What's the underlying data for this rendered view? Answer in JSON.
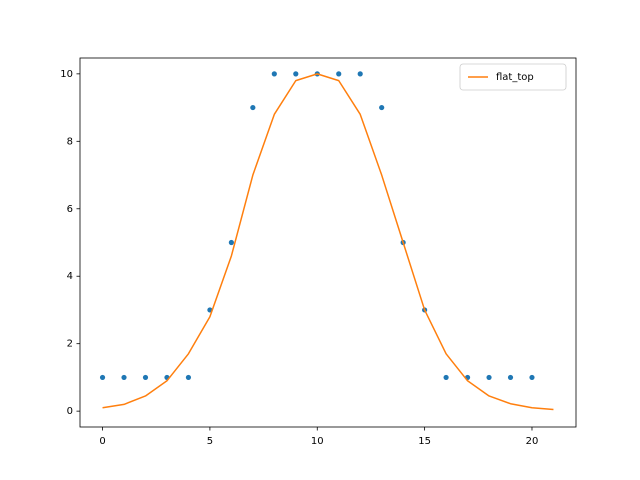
{
  "chart_data": {
    "type": "combo",
    "series": [
      {
        "type": "scatter",
        "color": "#1f77b4",
        "x": [
          0,
          1,
          2,
          3,
          4,
          5,
          6,
          7,
          8,
          9,
          10,
          11,
          12,
          13,
          14,
          15,
          16,
          17,
          18,
          19,
          20
        ],
        "values": [
          1,
          1,
          1,
          1,
          1,
          3,
          5,
          9,
          10,
          10,
          10,
          10,
          10,
          9,
          5,
          3,
          1,
          1,
          1,
          1,
          1
        ]
      },
      {
        "type": "line",
        "name": "flat_top",
        "color": "#ff7f0e",
        "x": [
          0,
          1,
          2,
          3,
          4,
          5,
          6,
          7,
          8,
          9,
          10,
          11,
          12,
          13,
          14,
          15,
          16,
          17,
          18,
          19,
          20,
          21
        ],
        "values": [
          0.1,
          0.2,
          0.45,
          0.9,
          1.7,
          2.8,
          4.6,
          7.0,
          8.8,
          9.8,
          10,
          9.8,
          8.8,
          7.0,
          5.0,
          3.0,
          1.7,
          0.9,
          0.45,
          0.22,
          0.1,
          0.05
        ]
      }
    ],
    "xlim": [
      -1.05,
      22.05
    ],
    "ylim": [
      -0.47,
      10.47
    ],
    "xticks": [
      0,
      5,
      10,
      15,
      20
    ],
    "yticks": [
      0,
      2,
      4,
      6,
      8,
      10
    ],
    "legend": "upper right"
  }
}
